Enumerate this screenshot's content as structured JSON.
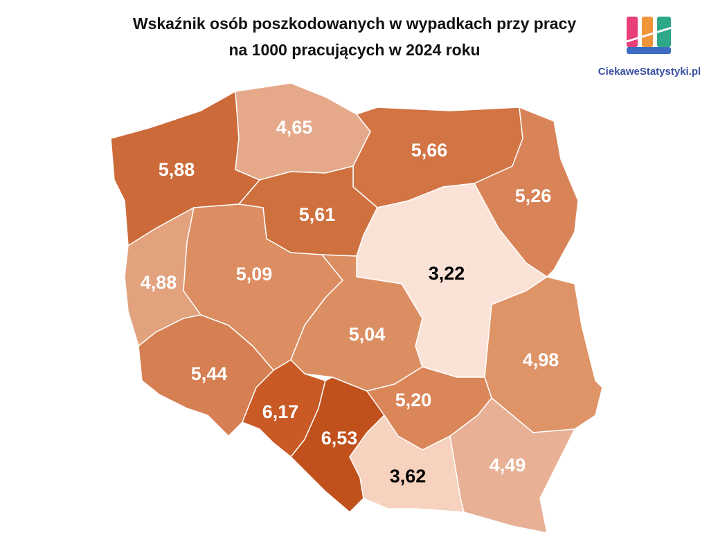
{
  "chart_data": {
    "type": "choropleth",
    "title": [
      "Wskaźnik osób poszkodowanych w wypadkach przy pracy",
      "na 1000 pracujących w 2024 roku"
    ],
    "values": [
      5.88,
      4.65,
      5.66,
      5.26,
      5.61,
      4.88,
      5.09,
      3.22,
      5.04,
      4.98,
      5.44,
      6.17,
      6.53,
      5.2,
      4.49,
      3.62
    ],
    "value_labels": [
      "5,88",
      "4,65",
      "5,66",
      "5,26",
      "5,61",
      "4,88",
      "5,09",
      "3,22",
      "5,04",
      "4,98",
      "5,44",
      "6,17",
      "6,53",
      "5,20",
      "4,49",
      "3,62"
    ],
    "colors": [
      "#cc6a39",
      "#e5a98a",
      "#d27444",
      "#d98458",
      "#cf713f",
      "#e2a27e",
      "#dc8d62",
      "#fbe2d6",
      "#dc8e63",
      "#df9468",
      "#d57f52",
      "#c95a26",
      "#c0501c",
      "#da8659",
      "#e8b094",
      "#f6d2bf"
    ],
    "label_colors": [
      "#ffffff",
      "#ffffff",
      "#ffffff",
      "#ffffff",
      "#ffffff",
      "#ffffff",
      "#ffffff",
      "#000000",
      "#ffffff",
      "#ffffff",
      "#ffffff",
      "#ffffff",
      "#ffffff",
      "#ffffff",
      "#ffffff",
      "#000000"
    ]
  },
  "logo": {
    "text": "CiekaweStatystyki.pl"
  }
}
